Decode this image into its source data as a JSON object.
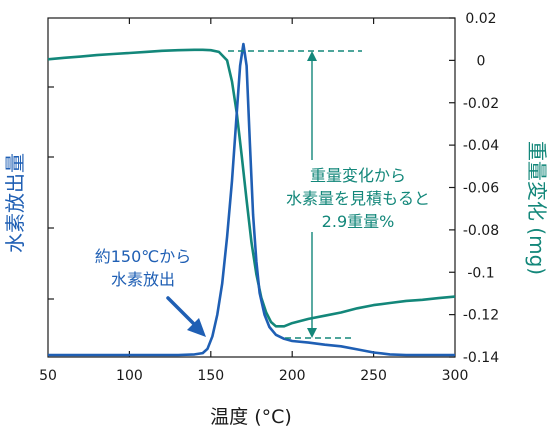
{
  "chart_data": {
    "type": "line",
    "xlabel": "温度 (°C)",
    "ylabel_left": "水素放出量",
    "ylabel_right": "重量変化 (mg)",
    "xlim": [
      50,
      300
    ],
    "ylim_right": [
      -0.14,
      0.02
    ],
    "xticks": [
      "50",
      "100",
      "150",
      "200",
      "250",
      "300"
    ],
    "yticks_right": [
      "0.02",
      "0",
      "-0.02",
      "-0.04",
      "-0.06",
      "-0.08",
      "-0.1",
      "-0.12",
      "-0.14"
    ],
    "colors": {
      "hydrogen": "#1f5fb4",
      "weight": "#13877a"
    },
    "series": [
      {
        "key": "weight",
        "axis": "right",
        "x": [
          50,
          60,
          70,
          80,
          90,
          100,
          110,
          120,
          130,
          140,
          145,
          150,
          155,
          160,
          163,
          166,
          169,
          172,
          175,
          178,
          181,
          184,
          187,
          190,
          195,
          200,
          210,
          220,
          230,
          240,
          250,
          260,
          270,
          280,
          290,
          300
        ],
        "values": [
          0.0005,
          0.0012,
          0.0018,
          0.0025,
          0.003,
          0.0035,
          0.004,
          0.0045,
          0.0048,
          0.005,
          0.005,
          0.0048,
          0.004,
          0.0,
          -0.01,
          -0.025,
          -0.045,
          -0.066,
          -0.086,
          -0.101,
          -0.112,
          -0.119,
          -0.1235,
          -0.1255,
          -0.1255,
          -0.124,
          -0.122,
          -0.1205,
          -0.119,
          -0.117,
          -0.1155,
          -0.1145,
          -0.1135,
          -0.113,
          -0.1122,
          -0.1115
        ]
      },
      {
        "key": "hydrogen",
        "axis": "left",
        "x": [
          50,
          100,
          130,
          140,
          145,
          148,
          151,
          154,
          157,
          160,
          163,
          166,
          168,
          170,
          172,
          174,
          176,
          178,
          180,
          183,
          186,
          190,
          195,
          200,
          210,
          220,
          230,
          240,
          250,
          260,
          270,
          280,
          290,
          300
        ],
        "values": [
          0.0,
          0.0,
          0.0,
          0.002,
          0.006,
          0.02,
          0.06,
          0.13,
          0.23,
          0.38,
          0.56,
          0.78,
          0.93,
          1.0,
          0.93,
          0.68,
          0.45,
          0.3,
          0.2,
          0.13,
          0.09,
          0.065,
          0.052,
          0.045,
          0.04,
          0.033,
          0.028,
          0.018,
          0.008,
          0.002,
          0.0,
          0.0,
          0.0,
          0.0
        ]
      }
    ],
    "annotations": {
      "weight_change_lines": [
        "重量変化から",
        "水素量を見積もると",
        "2.9重量%"
      ],
      "onset_lines": [
        "約150℃から",
        "水素放出"
      ]
    }
  }
}
